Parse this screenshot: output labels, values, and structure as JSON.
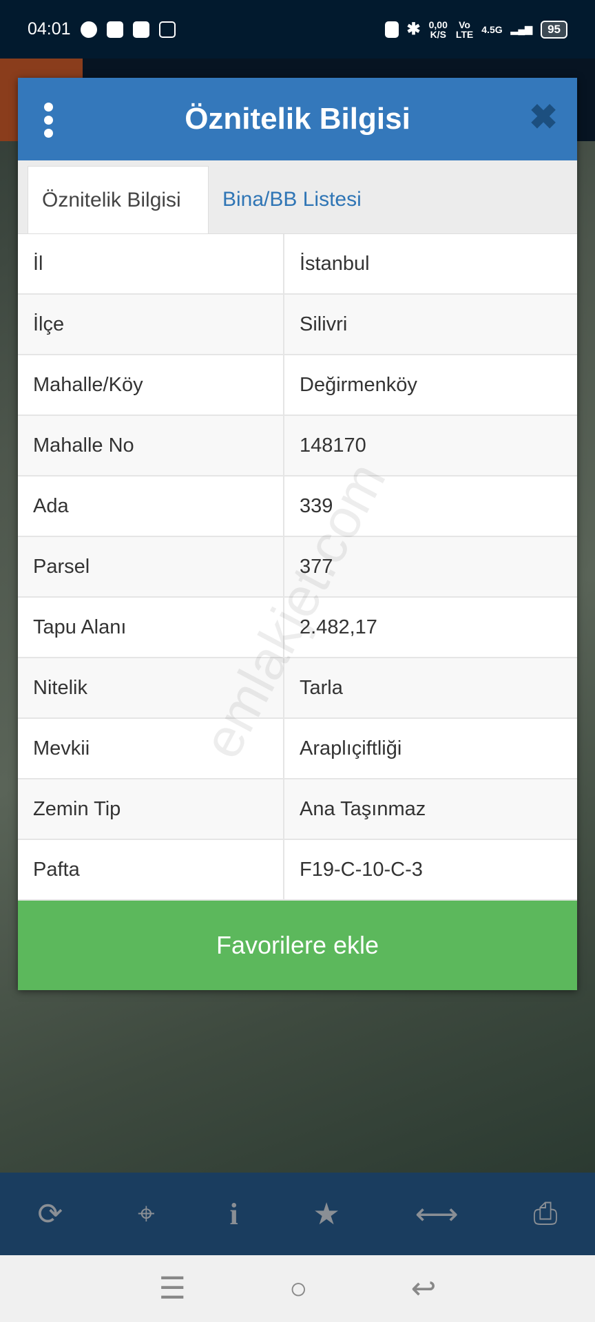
{
  "status": {
    "time": "04:01",
    "net_speed": "0,00",
    "net_unit": "K/S",
    "volte": "Vo",
    "lte": "LTE",
    "signal": "4.5G",
    "battery": "95"
  },
  "dialog": {
    "title": "Öznitelik Bilgisi",
    "tabs": [
      {
        "label": "Öznitelik Bilgisi",
        "active": true
      },
      {
        "label": "Bina/BB Listesi",
        "active": false
      }
    ],
    "rows": [
      {
        "key": "İl",
        "value": "İstanbul"
      },
      {
        "key": "İlçe",
        "value": "Silivri"
      },
      {
        "key": "Mahalle/Köy",
        "value": "Değirmenköy"
      },
      {
        "key": "Mahalle No",
        "value": "148170"
      },
      {
        "key": "Ada",
        "value": "339"
      },
      {
        "key": "Parsel",
        "value": "377"
      },
      {
        "key": "Tapu Alanı",
        "value": "2.482,17"
      },
      {
        "key": "Nitelik",
        "value": "Tarla"
      },
      {
        "key": "Mevkii",
        "value": "Araplıçiftliği"
      },
      {
        "key": "Zemin Tip",
        "value": "Ana Taşınmaz"
      },
      {
        "key": "Pafta",
        "value": "F19-C-10-C-3"
      }
    ],
    "favorite_button": "Favorilere ekle"
  },
  "watermark": "emlakjet.com",
  "toolbar": {
    "icons": [
      "refresh-icon",
      "locate-icon",
      "info-icon",
      "star-icon",
      "measure-icon",
      "print-icon"
    ]
  },
  "colors": {
    "header": "#3478bb",
    "favorite": "#5cb85c",
    "toolbar": "#1a3d5f"
  }
}
